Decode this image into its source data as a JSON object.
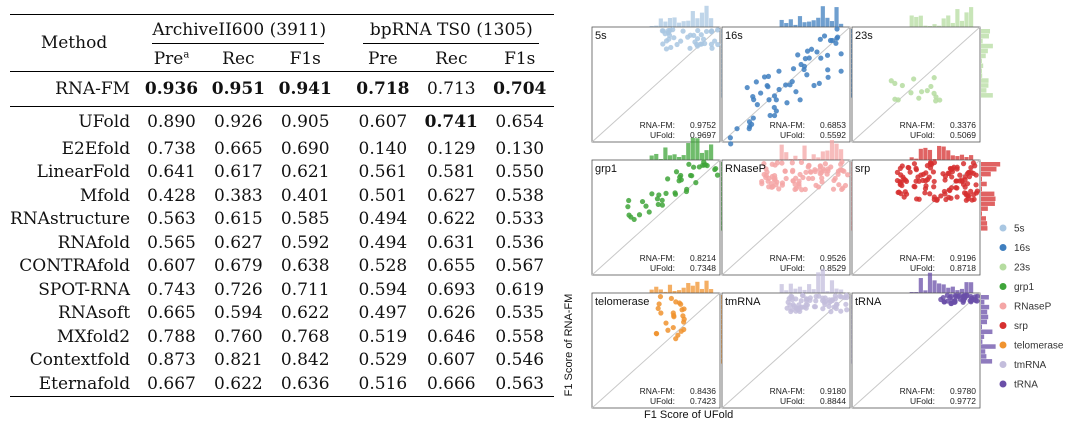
{
  "table": {
    "method_header": "Method",
    "group1": "ArchiveII600 (3911)",
    "group2": "bpRNA TS0 (1305)",
    "cols": [
      "Pre",
      "Rec",
      "F1s",
      "Pre",
      "Rec",
      "F1s"
    ],
    "pre_superscript": "a",
    "highlight_row": {
      "method": "RNA-FM",
      "values": [
        "0.936",
        "0.951",
        "0.941",
        "0.718",
        "0.713",
        "0.704"
      ],
      "bold": [
        true,
        true,
        true,
        true,
        false,
        true
      ]
    },
    "rows": [
      {
        "method": "UFold",
        "values": [
          "0.890",
          "0.926",
          "0.905",
          "0.607",
          "0.741",
          "0.654"
        ],
        "bold": [
          false,
          false,
          false,
          false,
          true,
          false
        ]
      },
      {
        "method": "E2Efold",
        "values": [
          "0.738",
          "0.665",
          "0.690",
          "0.140",
          "0.129",
          "0.130"
        ]
      },
      {
        "method": "LinearFold",
        "values": [
          "0.641",
          "0.617",
          "0.621",
          "0.561",
          "0.581",
          "0.550"
        ]
      },
      {
        "method": "Mfold",
        "values": [
          "0.428",
          "0.383",
          "0.401",
          "0.501",
          "0.627",
          "0.538"
        ]
      },
      {
        "method": "RNAstructure",
        "values": [
          "0.563",
          "0.615",
          "0.585",
          "0.494",
          "0.622",
          "0.533"
        ]
      },
      {
        "method": "RNAfold",
        "values": [
          "0.565",
          "0.627",
          "0.592",
          "0.494",
          "0.631",
          "0.536"
        ]
      },
      {
        "method": "CONTRAfold",
        "values": [
          "0.607",
          "0.679",
          "0.638",
          "0.528",
          "0.655",
          "0.567"
        ]
      },
      {
        "method": "SPOT-RNA",
        "values": [
          "0.743",
          "0.726",
          "0.711",
          "0.594",
          "0.693",
          "0.619"
        ]
      },
      {
        "method": "RNAsoft",
        "values": [
          "0.665",
          "0.594",
          "0.622",
          "0.497",
          "0.626",
          "0.535"
        ]
      },
      {
        "method": "MXfold2",
        "values": [
          "0.788",
          "0.760",
          "0.768",
          "0.519",
          "0.646",
          "0.558"
        ]
      },
      {
        "method": "Contextfold",
        "values": [
          "0.873",
          "0.821",
          "0.842",
          "0.529",
          "0.607",
          "0.546"
        ]
      },
      {
        "method": "Eternafold",
        "values": [
          "0.667",
          "0.622",
          "0.636",
          "0.516",
          "0.666",
          "0.563"
        ]
      }
    ]
  },
  "chart_data": {
    "type": "scatter",
    "xlabel": "F1 Score of UFold",
    "ylabel": "F1 Score of RNA-FM",
    "xlim": [
      0,
      1
    ],
    "ylim": [
      0,
      1
    ],
    "panels": [
      {
        "name": "5s",
        "color": "#a9c7e2",
        "rnafm": "0.9752",
        "ufold": "0.9697"
      },
      {
        "name": "16s",
        "color": "#3f7fbf",
        "rnafm": "0.6853",
        "ufold": "0.5592"
      },
      {
        "name": "23s",
        "color": "#b5dca0",
        "rnafm": "0.3376",
        "ufold": "0.5069"
      },
      {
        "name": "grp1",
        "color": "#3fa53a",
        "rnafm": "0.8214",
        "ufold": "0.7348"
      },
      {
        "name": "RNaseP",
        "color": "#f4a6a6",
        "rnafm": "0.9526",
        "ufold": "0.8529"
      },
      {
        "name": "srp",
        "color": "#d62f2f",
        "rnafm": "0.9196",
        "ufold": "0.8718"
      },
      {
        "name": "telomerase",
        "color": "#f0932f",
        "rnafm": "0.8436",
        "ufold": "0.7423"
      },
      {
        "name": "tmRNA",
        "color": "#c3bddc",
        "rnafm": "0.9180",
        "ufold": "0.8844"
      },
      {
        "name": "tRNA",
        "color": "#6a4fa8",
        "rnafm": "0.9780",
        "ufold": "0.9772"
      }
    ],
    "panel_rnafm_label": "RNA-FM:",
    "panel_ufold_label": "UFold:",
    "legend": [
      "5s",
      "16s",
      "23s",
      "grp1",
      "RNaseP",
      "srp",
      "telomerase",
      "tmRNA",
      "tRNA"
    ]
  }
}
